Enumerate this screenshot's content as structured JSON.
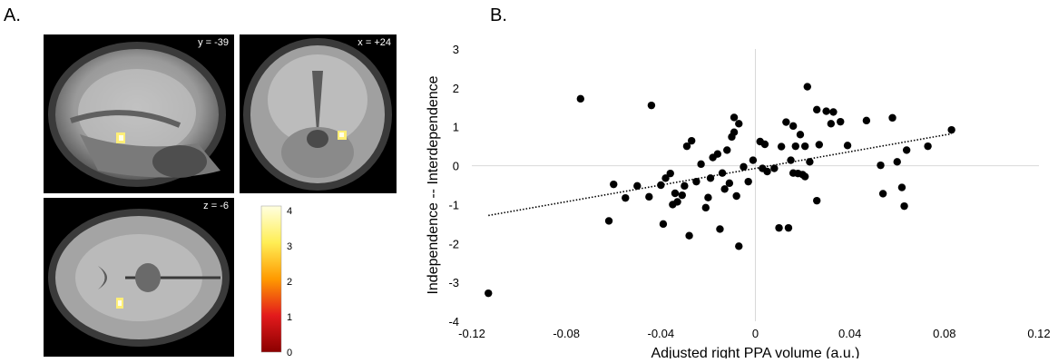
{
  "panels": {
    "a_label": "A.",
    "b_label": "B."
  },
  "brain_slices": {
    "sagittal_label": "y = -39",
    "coronal_label": "x = +24",
    "axial_label": "z = -6"
  },
  "colorbar": {
    "ticks": [
      "4",
      "3",
      "2",
      "1",
      "0"
    ],
    "colors": [
      "#ffffe0",
      "#ffee55",
      "#ff9a00",
      "#e31a1c",
      "#8b0000"
    ]
  },
  "chart_data": {
    "type": "scatter",
    "title": "",
    "xlabel": "Adjusted right PPA volume (a.u.)",
    "ylabel": "Independence -- Interdependence",
    "xlim": [
      -0.12,
      0.12
    ],
    "ylim": [
      -4,
      3
    ],
    "xticks": [
      "-0.12",
      "-0.08",
      "-0.04",
      "0",
      "0.04",
      "0.08",
      "0.12"
    ],
    "yticks": [
      "3",
      "2",
      "1",
      "0",
      "-1",
      "-2",
      "-3",
      "-4"
    ],
    "trendline": {
      "style": "dotted",
      "x": [
        -0.113,
        0.083
      ],
      "y": [
        -1.28,
        0.82
      ]
    },
    "marker_color": "#000000",
    "points": [
      [
        -0.113,
        -3.28
      ],
      [
        -0.074,
        1.72
      ],
      [
        -0.062,
        -1.42
      ],
      [
        -0.06,
        -0.48
      ],
      [
        -0.055,
        -0.83
      ],
      [
        -0.05,
        -0.52
      ],
      [
        -0.045,
        -0.8
      ],
      [
        -0.044,
        1.55
      ],
      [
        -0.04,
        -0.5
      ],
      [
        -0.039,
        -1.5
      ],
      [
        -0.038,
        -0.32
      ],
      [
        -0.036,
        -0.2
      ],
      [
        -0.035,
        -1.0
      ],
      [
        -0.034,
        -0.71
      ],
      [
        -0.033,
        -0.93
      ],
      [
        -0.031,
        -0.76
      ],
      [
        -0.03,
        -0.52
      ],
      [
        -0.029,
        0.5
      ],
      [
        -0.028,
        -1.8
      ],
      [
        -0.027,
        0.64
      ],
      [
        -0.025,
        -0.41
      ],
      [
        -0.023,
        0.04
      ],
      [
        -0.021,
        -1.08
      ],
      [
        -0.02,
        -0.82
      ],
      [
        -0.019,
        -0.32
      ],
      [
        -0.018,
        0.21
      ],
      [
        -0.016,
        0.3
      ],
      [
        -0.015,
        -1.63
      ],
      [
        -0.014,
        -0.19
      ],
      [
        -0.013,
        -0.6
      ],
      [
        -0.012,
        0.4
      ],
      [
        -0.011,
        -0.45
      ],
      [
        -0.01,
        0.74
      ],
      [
        -0.009,
        1.24
      ],
      [
        -0.009,
        0.86
      ],
      [
        -0.008,
        -0.78
      ],
      [
        -0.007,
        1.08
      ],
      [
        -0.007,
        -2.07
      ],
      [
        -0.005,
        -0.03
      ],
      [
        -0.003,
        -0.41
      ],
      [
        -0.001,
        0.14
      ],
      [
        0.002,
        0.62
      ],
      [
        0.003,
        -0.07
      ],
      [
        0.004,
        0.55
      ],
      [
        0.005,
        -0.15
      ],
      [
        0.008,
        -0.07
      ],
      [
        0.01,
        -1.6
      ],
      [
        0.011,
        0.49
      ],
      [
        0.013,
        1.12
      ],
      [
        0.014,
        -1.6
      ],
      [
        0.015,
        0.14
      ],
      [
        0.016,
        -0.19
      ],
      [
        0.016,
        1.02
      ],
      [
        0.017,
        0.5
      ],
      [
        0.018,
        -0.2
      ],
      [
        0.019,
        0.8
      ],
      [
        0.02,
        -0.23
      ],
      [
        0.021,
        0.5
      ],
      [
        0.021,
        -0.28
      ],
      [
        0.022,
        2.03
      ],
      [
        0.023,
        0.1
      ],
      [
        0.026,
        -0.9
      ],
      [
        0.026,
        1.44
      ],
      [
        0.027,
        0.54
      ],
      [
        0.03,
        1.4
      ],
      [
        0.032,
        1.08
      ],
      [
        0.033,
        1.38
      ],
      [
        0.036,
        1.13
      ],
      [
        0.039,
        0.52
      ],
      [
        0.047,
        1.16
      ],
      [
        0.053,
        0.01
      ],
      [
        0.054,
        -0.72
      ],
      [
        0.058,
        1.23
      ],
      [
        0.06,
        0.1
      ],
      [
        0.062,
        -0.56
      ],
      [
        0.063,
        -1.04
      ],
      [
        0.064,
        0.4
      ],
      [
        0.073,
        0.5
      ],
      [
        0.083,
        0.92
      ]
    ]
  }
}
